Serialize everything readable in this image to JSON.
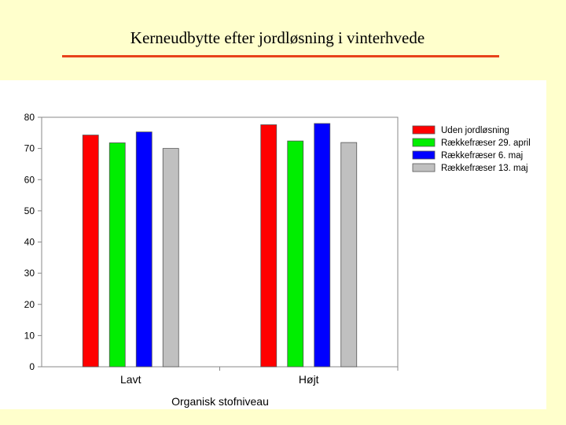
{
  "slide": {
    "title": "Kerneudbytte efter jordløsning i vinterhvede"
  },
  "chart_data": {
    "type": "bar",
    "title": "",
    "xlabel": "Organisk stofniveau",
    "ylabel": "",
    "ylim": [
      0,
      80
    ],
    "yticks": [
      0,
      10,
      20,
      30,
      40,
      50,
      60,
      70,
      80
    ],
    "grid": false,
    "legend_position": "top-right",
    "categories": [
      "Lavt",
      "Højt"
    ],
    "series": [
      {
        "name": "Uden jordløsning",
        "color": "#ff0000",
        "values": [
          74.3,
          77.6
        ]
      },
      {
        "name": "Rækkefræser 29. april",
        "color": "#00ee00",
        "values": [
          71.8,
          72.4
        ]
      },
      {
        "name": "Rækkefræser 6. maj",
        "color": "#0000ff",
        "values": [
          75.3,
          78.0
        ]
      },
      {
        "name": "Rækkefræser 13. maj",
        "color": "#c0c0c0",
        "values": [
          70.0,
          71.9
        ]
      }
    ]
  }
}
